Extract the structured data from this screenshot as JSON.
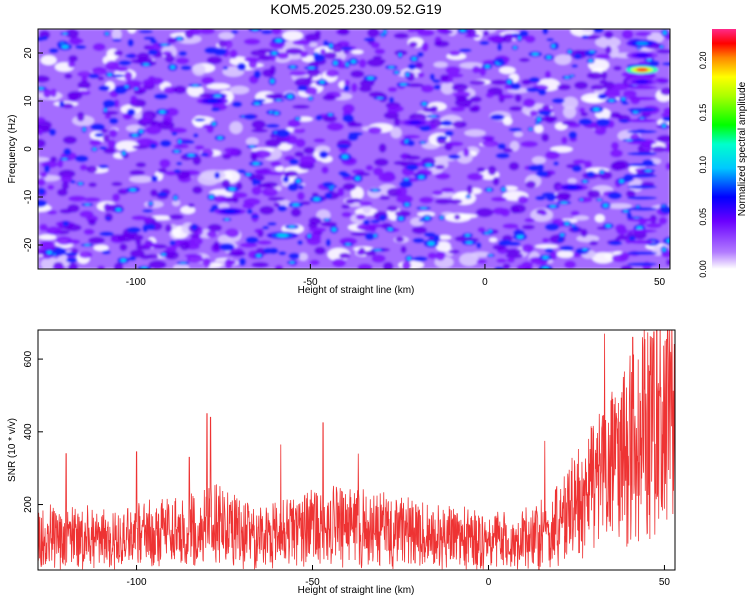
{
  "title": "KOM5.2025.230.09.52.G19",
  "chart_data": [
    {
      "type": "heatmap",
      "xlabel": "Height of straight line (km)",
      "ylabel": "Frequency (Hz)",
      "xlim": [
        -128,
        53
      ],
      "ylim": [
        -25,
        25
      ],
      "xticks": [
        -100,
        -50,
        0,
        50
      ],
      "yticks": [
        -20,
        -10,
        0,
        10,
        20
      ],
      "colorbar": {
        "label": "Normalized spectral amplitude",
        "range": [
          0,
          0.23
        ],
        "ticks": [
          "0.00",
          "0.05",
          "0.10",
          "0.15",
          "0.20"
        ],
        "colormap": [
          "#ffffff",
          "#8c00ff",
          "#0000ff",
          "#00ffff",
          "#00ff00",
          "#ffff00",
          "#ff0000",
          "#ff00ff"
        ]
      },
      "features": [
        {
          "x": 45,
          "y": 16.5,
          "value": 0.22
        },
        {
          "x": 45,
          "y": 22,
          "value": 0.09
        },
        {
          "x": 45,
          "y": 19.5,
          "value": 0.06
        },
        {
          "x": 45,
          "y": 14,
          "value": 0.06
        },
        {
          "x": -58,
          "y": -18,
          "value": 0.1
        },
        {
          "x": -20,
          "y": 5.5,
          "value": 0.06
        },
        {
          "x": 25,
          "y": -8,
          "value": 0.07
        },
        {
          "x": -73,
          "y": -13,
          "value": 0.07
        },
        {
          "x": -78,
          "y": 10,
          "value": 0.07
        }
      ]
    },
    {
      "type": "line",
      "xlabel": "Height of straight line (km)",
      "ylabel": "SNR (10 * v/v)",
      "xlim": [
        -128,
        53
      ],
      "ylim": [
        20,
        680
      ],
      "xticks": [
        -100,
        -50,
        0,
        50
      ],
      "yticks": [
        200,
        400,
        600
      ],
      "grid": false,
      "color": "#ee3333",
      "envelope": [
        {
          "x": -128,
          "y": 110
        },
        {
          "x": -110,
          "y": 105
        },
        {
          "x": -95,
          "y": 120
        },
        {
          "x": -85,
          "y": 130
        },
        {
          "x": -78,
          "y": 150
        },
        {
          "x": -65,
          "y": 110
        },
        {
          "x": -52,
          "y": 130
        },
        {
          "x": -45,
          "y": 150
        },
        {
          "x": -30,
          "y": 130
        },
        {
          "x": -15,
          "y": 115
        },
        {
          "x": 0,
          "y": 100
        },
        {
          "x": 10,
          "y": 100
        },
        {
          "x": 20,
          "y": 140
        },
        {
          "x": 28,
          "y": 230
        },
        {
          "x": 35,
          "y": 300
        },
        {
          "x": 42,
          "y": 380
        },
        {
          "x": 48,
          "y": 420
        },
        {
          "x": 53,
          "y": 430
        }
      ],
      "spikes": [
        {
          "x": -120,
          "y": 340
        },
        {
          "x": -100,
          "y": 345
        },
        {
          "x": -85,
          "y": 330
        },
        {
          "x": -80,
          "y": 450
        },
        {
          "x": -79,
          "y": 440
        },
        {
          "x": -59,
          "y": 365
        },
        {
          "x": -47,
          "y": 425
        },
        {
          "x": -37,
          "y": 340
        },
        {
          "x": 16,
          "y": 375
        },
        {
          "x": 33,
          "y": 670
        },
        {
          "x": 41,
          "y": 660
        },
        {
          "x": 47,
          "y": 675
        },
        {
          "x": 51,
          "y": 680
        }
      ]
    }
  ]
}
